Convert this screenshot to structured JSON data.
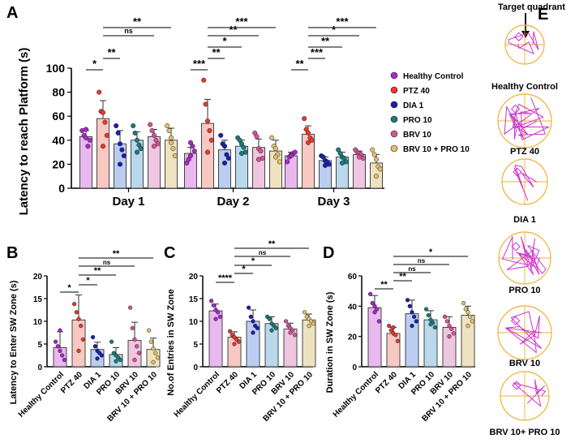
{
  "groups": [
    "Healthy Control",
    "PTZ 40",
    "DIA 1",
    "PRO 10",
    "BRV 10",
    "BRV 10 + PRO 10"
  ],
  "colors": {
    "fills": [
      "#e9b8f0",
      "#f8c8c3",
      "#bccdf2",
      "#b9d8ec",
      "#efc6df",
      "#efe2c0"
    ],
    "dots": [
      "#a62ac4",
      "#e8382e",
      "#1a1fae",
      "#1d7a76",
      "#d25493",
      "#e2be6a"
    ],
    "maze": "#cc33cc",
    "circle": "#f0b030"
  },
  "chart_data": [
    {
      "panel": "A",
      "type": "bar",
      "ylabel": "Latency to reach Platform (s)",
      "ylim": [
        0,
        100
      ],
      "yticks": [
        "0",
        "20",
        "40",
        "60",
        "80",
        "100"
      ],
      "categories": [
        "Day 1",
        "Day 2",
        "Day 3"
      ],
      "series": [
        {
          "name": "Healthy Control",
          "values": [
            43,
            29,
            27
          ],
          "errors": [
            5,
            5,
            3
          ],
          "points": [
            [
              48,
              44,
              42,
              35,
              40,
              49
            ],
            [
              21,
              24,
              27,
              35,
              31,
              38
            ],
            [
              22,
              26,
              28,
              29,
              30,
              27
            ]
          ]
        },
        {
          "name": "PTZ 40",
          "values": [
            58,
            54,
            45
          ],
          "errors": [
            15,
            20,
            7
          ],
          "points": [
            [
              80,
              64,
              63,
              55,
              44,
              35
            ],
            [
              90,
              70,
              56,
              48,
              40,
              30
            ],
            [
              58,
              49,
              46,
              42,
              40,
              38
            ]
          ]
        },
        {
          "name": "DIA 1",
          "values": [
            37,
            32,
            23
          ],
          "errors": [
            11,
            8,
            3
          ],
          "points": [
            [
              52,
              46,
              37,
              32,
              27,
              20
            ],
            [
              44,
              37,
              35,
              28,
              25,
              21
            ],
            [
              27,
              26,
              23,
              22,
              20,
              19
            ]
          ]
        },
        {
          "name": "PRO 10",
          "values": [
            40,
            35,
            26
          ],
          "errors": [
            7,
            5,
            4
          ],
          "points": [
            [
              52,
              46,
              40,
              36,
              33,
              30
            ],
            [
              42,
              40,
              37,
              34,
              30,
              29
            ],
            [
              32,
              29,
              26,
              25,
              22,
              21
            ]
          ]
        },
        {
          "name": "BRV 10",
          "values": [
            43,
            34,
            28
          ],
          "errors": [
            6,
            7,
            3
          ],
          "points": [
            [
              53,
              48,
              44,
              40,
              37,
              35
            ],
            [
              46,
              43,
              33,
              31,
              25,
              24
            ],
            [
              32,
              30,
              29,
              28,
              25,
              26
            ]
          ]
        },
        {
          "name": "BRV 10 + PRO 10",
          "values": [
            40,
            31,
            21
          ],
          "errors": [
            10,
            9,
            7
          ],
          "points": [
            [
              52,
              48,
              42,
              33,
              27,
              38
            ],
            [
              42,
              35,
              33,
              28,
              22,
              26
            ],
            [
              32,
              28,
              24,
              18,
              16,
              10
            ]
          ]
        }
      ],
      "significance": [
        [
          "*",
          "**",
          "ns",
          "**"
        ],
        [
          "***",
          "**",
          "*",
          "**",
          "***"
        ],
        [
          "**",
          "***",
          "**",
          "*",
          "***"
        ]
      ]
    },
    {
      "panel": "B",
      "type": "bar",
      "ylabel": "Latency to Enter SW Zone (s)",
      "ylim": [
        0,
        20
      ],
      "yticks": [
        "0",
        "5",
        "10",
        "15",
        "20"
      ],
      "values": [
        4.2,
        10.3,
        3.8,
        2.7,
        5.8,
        3.8
      ],
      "errors": [
        3.5,
        5.5,
        1.6,
        1.5,
        4.0,
        2.5
      ],
      "points": [
        [
          5.5,
          4.5,
          3.5,
          2.5,
          1.5,
          8.0
        ],
        [
          13.8,
          12.0,
          10.5,
          9.0,
          6.0,
          3.5
        ],
        [
          6.5,
          4.5,
          3.5,
          3.0,
          2.5,
          1.8
        ],
        [
          5.5,
          3.0,
          2.5,
          2.0,
          1.5,
          1.2
        ],
        [
          13.0,
          8.5,
          6.0,
          4.5,
          3.0,
          1.5
        ],
        [
          8.0,
          5.5,
          4.0,
          3.0,
          2.0,
          1.0
        ]
      ],
      "significance": [
        "*",
        "*",
        "**",
        "ns",
        "**"
      ]
    },
    {
      "panel": "C",
      "type": "bar",
      "ylabel": "No.of Entries in SW Zone",
      "ylim": [
        0,
        20
      ],
      "yticks": [
        "0",
        "5",
        "10",
        "15",
        "20"
      ],
      "values": [
        12.3,
        6.5,
        10.0,
        9.5,
        8.3,
        10.3
      ],
      "errors": [
        1.5,
        1.2,
        2.5,
        1.5,
        1.3,
        1.3
      ],
      "points": [
        [
          14.5,
          13.5,
          12.5,
          12.0,
          11.0,
          10.5
        ],
        [
          7.8,
          7.0,
          6.5,
          6.0,
          5.5,
          5.0
        ],
        [
          13.0,
          11.0,
          10.0,
          9.0,
          8.5,
          7.5
        ],
        [
          11.0,
          10.5,
          9.5,
          9.0,
          8.5,
          8.0
        ],
        [
          10.0,
          9.0,
          8.5,
          8.0,
          7.0,
          7.5
        ],
        [
          12.0,
          11.0,
          10.5,
          10.0,
          9.5,
          9.0
        ]
      ],
      "significance": [
        "****",
        "*",
        "*",
        "ns",
        "**"
      ]
    },
    {
      "panel": "D",
      "type": "bar",
      "ylabel": "Duration in SW Zone (s)",
      "ylim": [
        0,
        60
      ],
      "yticks": [
        "0",
        "20",
        "40",
        "60"
      ],
      "values": [
        39,
        22,
        35,
        31,
        26,
        34
      ],
      "errors": [
        8,
        4,
        9,
        6,
        7,
        6
      ],
      "points": [
        [
          48,
          42,
          40,
          38,
          30,
          36
        ],
        [
          27,
          24,
          22,
          21,
          17,
          26
        ],
        [
          44,
          40,
          36,
          33,
          30,
          27
        ],
        [
          38,
          34,
          31,
          29,
          26,
          28
        ],
        [
          33,
          30,
          27,
          25,
          22,
          20
        ],
        [
          42,
          38,
          36,
          33,
          30,
          27
        ]
      ],
      "significance": [
        "**",
        "**",
        "ns",
        "ns",
        "*"
      ]
    }
  ],
  "panel_labels": {
    "a": "A",
    "b": "B",
    "c": "C",
    "d": "D",
    "e": "E"
  },
  "panel_e": {
    "target_label": "Target quadrant",
    "captions": [
      "Healthy Control",
      "PTZ 40",
      "DIA 1",
      "PRO 10",
      "BRV 10",
      "BRV 10+ PRO 10"
    ]
  }
}
